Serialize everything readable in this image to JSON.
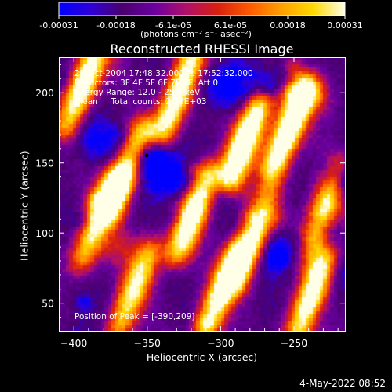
{
  "colorbar": {
    "ticks": [
      "-0.00031",
      "-0.00018",
      "-6.1e-05",
      "6.1e-05",
      "0.00018",
      "0.00031"
    ],
    "unit_label": "(photons cm⁻² s⁻¹ asec⁻²)",
    "colormap": [
      "#0000ff",
      "#2f00d8",
      "#4b006e",
      "#6a00a0",
      "#b0106a",
      "#d82010",
      "#ff5a00",
      "#ffa000",
      "#ffd800",
      "#ffffe8"
    ]
  },
  "chart_data": {
    "type": "heatmap",
    "title": "Reconstructed RHESSI Image",
    "xlabel": "Heliocentric X (arcsec)",
    "ylabel": "Heliocentric Y (arcsec)",
    "xlim": [
      -410,
      -215
    ],
    "ylim": [
      30,
      225
    ],
    "xticks": [
      -400,
      -350,
      -300,
      -250
    ],
    "yticks": [
      50,
      100,
      150,
      200
    ],
    "color_range": [
      -0.00031,
      0.00031
    ],
    "peak": {
      "x": -390,
      "y": 209
    },
    "annotations": [
      "27-Oct-2004 17:48:32.000 to 17:52:32.000",
      "Detectors: 3F 4F 5F 6F 7F 8F, Att 0",
      "Energy Range: 12.0 - 25.0 keV",
      "Clean     Total counts: 2.78E+03"
    ],
    "peak_label": "Position of Peak = [-390,209]"
  },
  "footer": {
    "date": "4-May-2022 08:52"
  }
}
